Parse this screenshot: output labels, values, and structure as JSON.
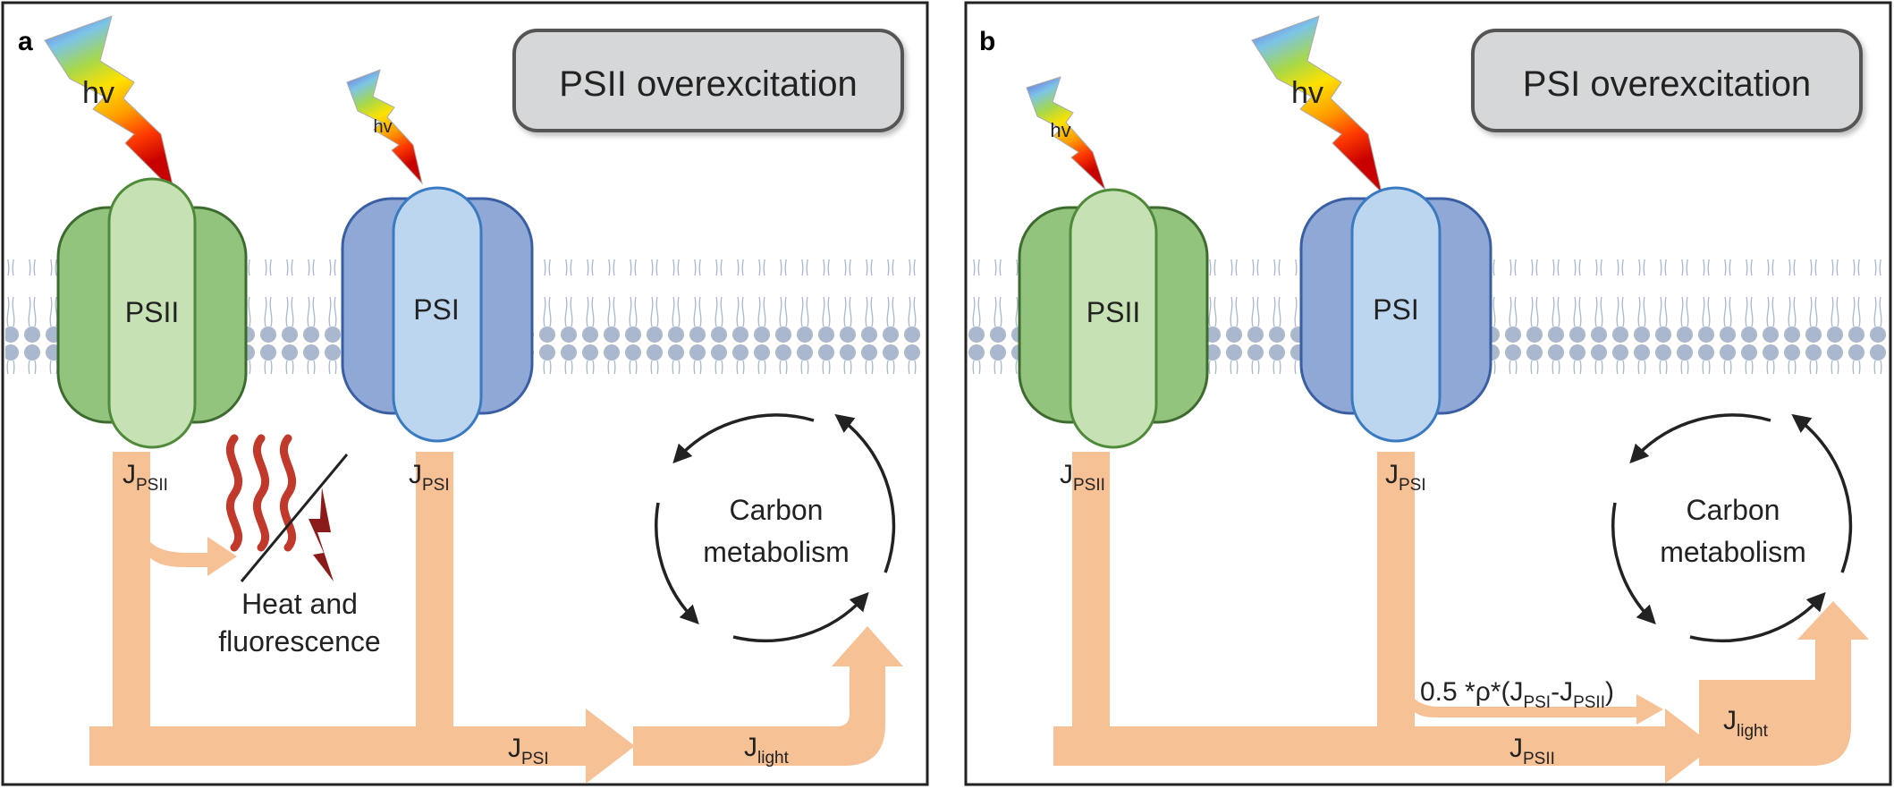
{
  "panel_a": {
    "letter": "a",
    "title": "PSII overexcitation",
    "light_big": "hv",
    "light_small": "hv",
    "psii_label": "PSII",
    "psi_label": "PSI",
    "j_letter": "J",
    "sub_psii": "PSII",
    "sub_psi": "PSI",
    "sub_light": "light",
    "carbon_line1": "Carbon",
    "carbon_line2": "metabolism",
    "heat_line1": "Heat and",
    "heat_line2": "fluorescence"
  },
  "panel_b": {
    "letter": "b",
    "title": "PSI overexcitation",
    "light_big": "hv",
    "light_small": "hv",
    "psii_label": "PSII",
    "psi_label": "PSI",
    "j_letter": "J",
    "sub_psii": "PSII",
    "sub_psi": "PSI",
    "sub_light": "light",
    "carbon_line1": "Carbon",
    "carbon_line2": "metabolism",
    "cyclic_prefix": "0.5 *ρ*(J",
    "cyclic_mid": "-J",
    "cyclic_suffix": ")"
  },
  "colors": {
    "psii_dark": "#93c47d",
    "psii_light": "#c6e2b4",
    "psi_dark": "#8fa8d6",
    "psi_light": "#bcd6ef",
    "flux": "#f7c196",
    "heat": "#c0392b",
    "membrane": "#a9b8cc"
  }
}
